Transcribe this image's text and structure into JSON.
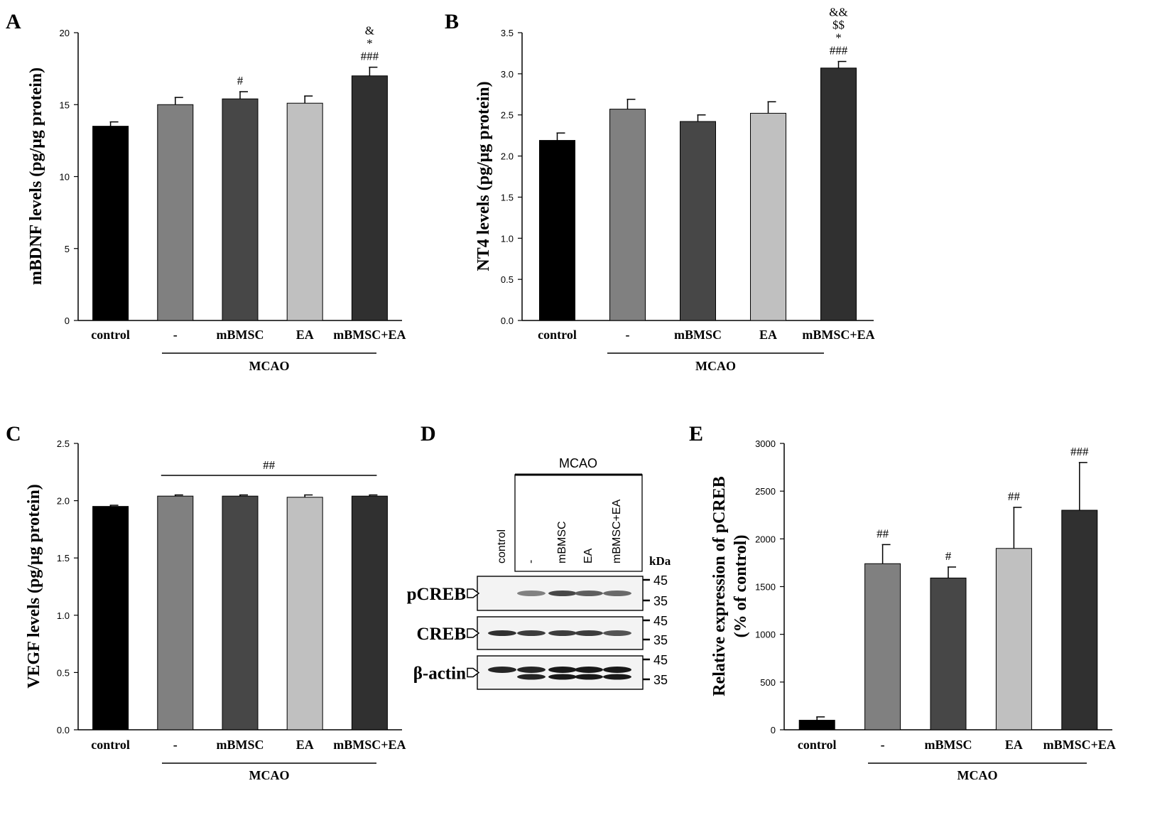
{
  "figure": {
    "panel_d": {
      "letter": "D",
      "group_label": "MCAO",
      "lane_labels": [
        "control",
        "-",
        "mBMSC",
        "EA",
        "mBMSC+EA"
      ],
      "kda_label": "kDa",
      "bands": [
        {
          "label": "pCREB",
          "markers": [
            "45",
            "35"
          ],
          "intensities": [
            0.0,
            0.55,
            0.8,
            0.7,
            0.65
          ],
          "doublet": false
        },
        {
          "label": "CREB",
          "markers": [
            "45",
            "35"
          ],
          "intensities": [
            0.9,
            0.85,
            0.85,
            0.85,
            0.75
          ],
          "doublet": false
        },
        {
          "label": "β-actin",
          "markers": [
            "45",
            "35"
          ],
          "intensities": [
            0.95,
            0.95,
            1.0,
            1.0,
            1.0
          ],
          "doublet": true
        }
      ]
    }
  },
  "chart_data": [
    {
      "panel": "A",
      "type": "bar",
      "ylabel": "mBDNF levels (pg/μg protein)",
      "ylim": [
        0,
        20
      ],
      "yticks": [
        "0",
        "5",
        "10",
        "15",
        "20"
      ],
      "categories": [
        "control",
        "-",
        "mBMSC",
        "EA",
        "mBMSC+EA"
      ],
      "values": [
        13.5,
        15.0,
        15.4,
        15.1,
        17.0
      ],
      "errors": [
        0.3,
        0.5,
        0.5,
        0.5,
        0.6
      ],
      "colors": [
        "#000000",
        "#808080",
        "#474747",
        "#c0c0c0",
        "#303030"
      ],
      "annotations": [
        [],
        [],
        [
          "#"
        ],
        [],
        [
          "###",
          "*",
          "&"
        ]
      ],
      "group_label": "MCAO",
      "group_span": [
        1,
        4
      ]
    },
    {
      "panel": "B",
      "type": "bar",
      "ylabel": "NT4 levels (pg/μg protein)",
      "ylim": [
        0,
        3.5
      ],
      "yticks": [
        "0.0",
        "0.5",
        "1.0",
        "1.5",
        "2.0",
        "2.5",
        "3.0",
        "3.5"
      ],
      "categories": [
        "control",
        "-",
        "mBMSC",
        "EA",
        "mBMSC+EA"
      ],
      "values": [
        2.19,
        2.57,
        2.42,
        2.52,
        3.07
      ],
      "errors": [
        0.09,
        0.12,
        0.08,
        0.14,
        0.08
      ],
      "colors": [
        "#000000",
        "#808080",
        "#474747",
        "#c0c0c0",
        "#303030"
      ],
      "annotations": [
        [],
        [],
        [],
        [],
        [
          "###",
          "*",
          "$$",
          "&&"
        ]
      ],
      "group_label": "MCAO",
      "group_span": [
        1,
        4
      ]
    },
    {
      "panel": "C",
      "type": "bar",
      "ylabel": "VEGF levels (pg/μg protein)",
      "ylim": [
        0,
        2.5
      ],
      "yticks": [
        "0.0",
        "0.5",
        "1.0",
        "1.5",
        "2.0",
        "2.5"
      ],
      "categories": [
        "control",
        "-",
        "mBMSC",
        "EA",
        "mBMSC+EA"
      ],
      "values": [
        1.95,
        2.04,
        2.04,
        2.03,
        2.04
      ],
      "errors": [
        0.01,
        0.01,
        0.01,
        0.02,
        0.01
      ],
      "colors": [
        "#000000",
        "#808080",
        "#474747",
        "#c0c0c0",
        "#303030"
      ],
      "annotations": [
        [],
        [],
        [],
        [],
        []
      ],
      "bracket": {
        "label": "##",
        "span": [
          1,
          4
        ]
      },
      "group_label": "MCAO",
      "group_span": [
        1,
        4
      ]
    },
    {
      "panel": "E",
      "type": "bar",
      "ylabel": [
        "Relative expression of pCREB",
        "(% of control)"
      ],
      "ylim": [
        0,
        3000
      ],
      "yticks": [
        "0",
        "500",
        "1000",
        "1500",
        "2000",
        "2500",
        "3000"
      ],
      "categories": [
        "control",
        "-",
        "mBMSC",
        "EA",
        "mBMSC+EA"
      ],
      "values": [
        100,
        1740,
        1590,
        1900,
        2300
      ],
      "errors": [
        35,
        200,
        115,
        430,
        500
      ],
      "colors": [
        "#000000",
        "#808080",
        "#474747",
        "#c0c0c0",
        "#303030"
      ],
      "annotations": [
        [],
        [
          "##"
        ],
        [
          "#"
        ],
        [
          "##"
        ],
        [
          "###"
        ]
      ],
      "group_label": "MCAO",
      "group_span": [
        1,
        4
      ]
    }
  ]
}
